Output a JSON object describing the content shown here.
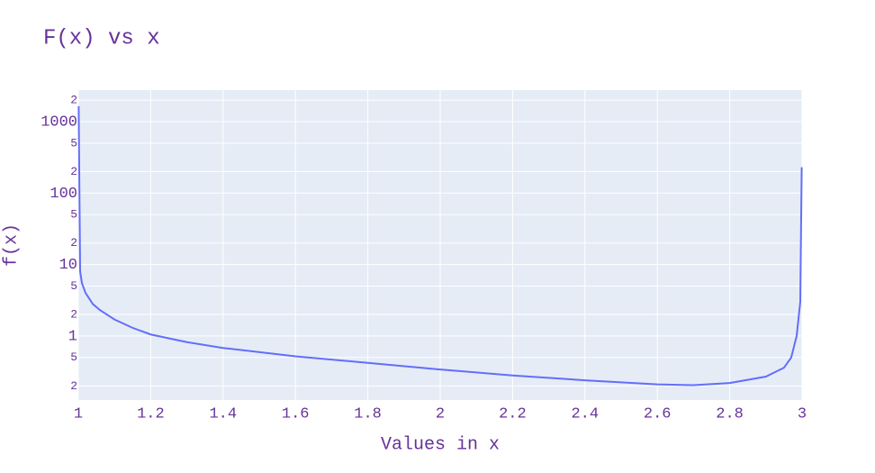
{
  "chart_data": {
    "type": "line",
    "title": "F(x) vs x",
    "x_label": "Values in x",
    "y_label": "f(x)",
    "log_y": true,
    "grid": true,
    "color": "#636efa",
    "x": [
      1.001,
      1.005,
      1.01,
      1.02,
      1.04,
      1.06,
      1.1,
      1.15,
      1.2,
      1.3,
      1.4,
      1.6,
      1.8,
      2.0,
      2.2,
      2.4,
      2.6,
      2.7,
      2.8,
      2.9,
      2.95,
      2.97,
      2.985,
      2.995,
      2.999
    ],
    "values": [
      1640,
      8,
      5.5,
      4,
      2.8,
      2.3,
      1.7,
      1.3,
      1.05,
      0.82,
      0.68,
      0.52,
      0.42,
      0.34,
      0.28,
      0.24,
      0.21,
      0.205,
      0.22,
      0.27,
      0.36,
      0.5,
      1,
      3,
      230
    ],
    "xlim": [
      1,
      3
    ],
    "xticks": [
      1,
      1.2,
      1.4,
      1.6,
      1.8,
      2,
      2.2,
      2.4,
      2.6,
      2.8,
      3
    ],
    "ylim": [
      0.127,
      2760
    ],
    "yticks": [
      {
        "value": 0.2,
        "label": "2"
      },
      {
        "value": 0.5,
        "label": "5"
      },
      1,
      {
        "value": 2,
        "label": "2"
      },
      {
        "value": 5,
        "label": "5"
      },
      10,
      {
        "value": 20,
        "label": "2"
      },
      {
        "value": 50,
        "label": "5"
      },
      100,
      {
        "value": 200,
        "label": "2"
      },
      {
        "value": 500,
        "label": "5"
      },
      1000,
      {
        "value": 2000,
        "label": "2"
      }
    ]
  }
}
